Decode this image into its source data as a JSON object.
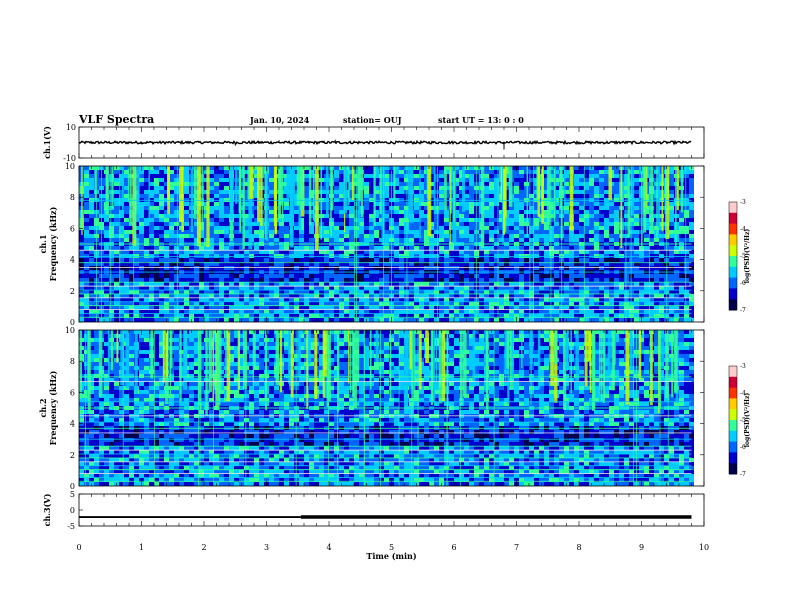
{
  "header": {
    "title": "VLF Spectra",
    "date": "Jan. 10, 2024",
    "station": "station= OUJ",
    "start": "start  UT  =   13: 0  : 0"
  },
  "chart_data": [
    {
      "type": "line",
      "panel": "ch1-waveform",
      "ylabel": "ch.1(V)",
      "ylim": [
        -10,
        10
      ],
      "yticks": [
        10,
        -10
      ],
      "xlim": [
        0,
        10
      ],
      "data_end_min": 9.8,
      "baseline": 0,
      "spikes": [
        {
          "x": 2.5,
          "y": -2.0
        },
        {
          "x": 3.2,
          "y": 1.5
        },
        {
          "x": 4.1,
          "y": 1.8
        },
        {
          "x": 4.4,
          "y": 1.2
        },
        {
          "x": 6.8,
          "y": -4.5
        },
        {
          "x": 8.6,
          "y": 1.0
        }
      ]
    },
    {
      "type": "heatmap",
      "panel": "ch1-spectrogram",
      "ylabel": "ch.1\nFrequency (kHz)",
      "ylim": [
        0,
        10
      ],
      "yticks": [
        0,
        2,
        4,
        6,
        8,
        10
      ],
      "xlim": [
        0,
        10
      ],
      "data_end_min": 9.8,
      "colorbar": {
        "label": "log(PSD)(V²/Hz)",
        "range": [
          -7,
          -3
        ],
        "ticks": [
          -3,
          -4,
          -5,
          -6,
          -7
        ]
      },
      "dark_band_khz": [
        2.8,
        4.2
      ],
      "line_freqs_khz": [
        0.3,
        0.55,
        0.8,
        1.05,
        1.3,
        1.55,
        1.8,
        2.05,
        2.3,
        2.55,
        3.2,
        3.5,
        3.8,
        4.2,
        4.6,
        5.0,
        7.8
      ]
    },
    {
      "type": "heatmap",
      "panel": "ch2-spectrogram",
      "ylabel": "ch.2\nFrequency (kHz)",
      "ylim": [
        0,
        10
      ],
      "yticks": [
        0,
        2,
        4,
        6,
        8,
        10
      ],
      "xlim": [
        0,
        10
      ],
      "data_end_min": 9.8,
      "colorbar": {
        "label": "log(PSD)(V²/Hz)",
        "range": [
          -7,
          -3
        ],
        "ticks": [
          -3,
          -4,
          -5,
          -6,
          -7
        ]
      },
      "dark_band_khz": [
        2.6,
        4.0
      ],
      "line_freqs_khz": [
        0.3,
        0.55,
        0.8,
        1.05,
        1.3,
        1.55,
        1.8,
        2.05,
        2.3,
        2.55,
        3.0,
        3.4,
        3.7,
        4.1,
        4.5,
        5.0,
        5.4,
        6.7,
        7.0
      ]
    },
    {
      "type": "line",
      "panel": "ch3-waveform",
      "ylabel": "ch.3(V)",
      "ylim": [
        -5,
        5
      ],
      "yticks": [
        5,
        0,
        -5
      ],
      "xlim": [
        0,
        10
      ],
      "xlabel": "Time  (min)",
      "xticks": [
        0,
        1,
        2,
        3,
        4,
        5,
        6,
        7,
        8,
        9,
        10
      ],
      "segments": [
        {
          "x": [
            0,
            3.55
          ],
          "y": -2.2
        },
        {
          "x": [
            3.55,
            9.8
          ],
          "y": -2.2,
          "thick": true
        }
      ]
    }
  ],
  "colors": {
    "axis": "#000000",
    "background": "#ffffff",
    "colormap": [
      "#00004d",
      "#0000cc",
      "#0066ff",
      "#00ccff",
      "#33ff99",
      "#ccff00",
      "#ffcc00",
      "#ff3300",
      "#cc0033",
      "#ffcccc",
      "#ffffff"
    ]
  }
}
